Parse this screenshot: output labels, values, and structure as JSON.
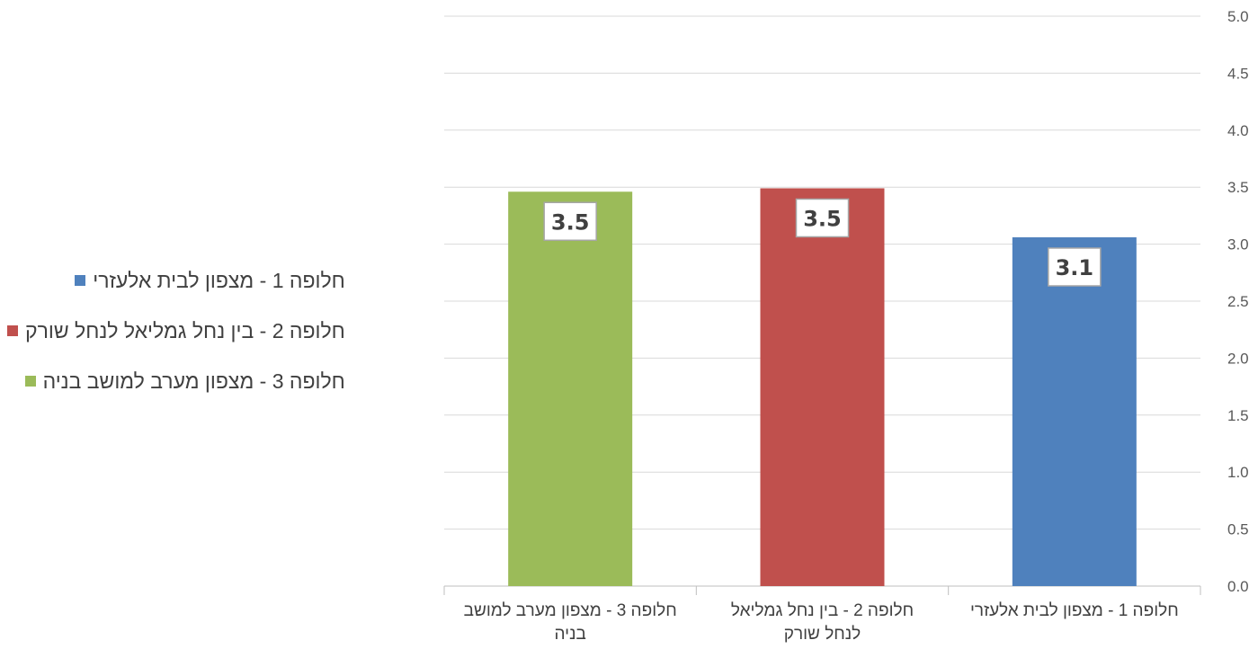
{
  "chart_data": {
    "type": "bar",
    "categories": [
      [
        "חלופה 1 - מצפון לבית אלעזרי"
      ],
      [
        "חלופה 2 - בין נחל גמליאל",
        "לנחל שורק"
      ],
      [
        "חלופה 3 - מצפון מערב למושב",
        "בניה"
      ]
    ],
    "values": [
      3.06,
      3.49,
      3.46
    ],
    "data_labels": [
      "3.1",
      "3.5",
      "3.5"
    ],
    "colors": [
      "#4f81bd",
      "#c0504d",
      "#9bbb59"
    ],
    "ylim": [
      0,
      5
    ],
    "yticks": [
      "0.0",
      "0.5",
      "1.0",
      "1.5",
      "2.0",
      "2.5",
      "3.0",
      "3.5",
      "4.0",
      "4.5",
      "5.0"
    ],
    "grid": true,
    "legend_position": "left",
    "legend": [
      {
        "label": "חלופה 1 - מצפון לבית אלעזרי",
        "color": "#4f81bd"
      },
      {
        "label": "חלופה 2 - בין נחל גמליאל לנחל שורק",
        "color": "#c0504d"
      },
      {
        "label": "חלופה 3 - מצפון מערב למושב בניה",
        "color": "#9bbb59"
      }
    ],
    "axis_direction": "right-to-left"
  }
}
